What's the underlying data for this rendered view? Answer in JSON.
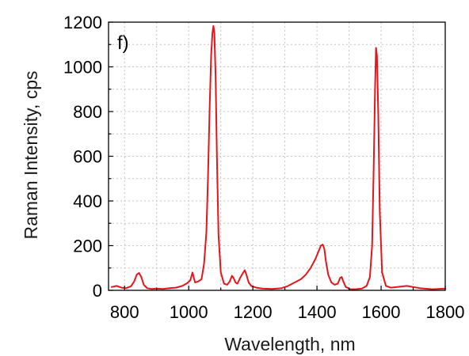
{
  "chart_data": {
    "type": "line",
    "panel_label": "f)",
    "xlabel": "Wavelength, nm",
    "ylabel": "Raman Intensity, cps",
    "xlim": [
      750,
      1800
    ],
    "ylim": [
      0,
      1200
    ],
    "x_ticks": [
      800,
      1000,
      1200,
      1400,
      1600,
      1800
    ],
    "y_ticks": [
      0,
      200,
      400,
      600,
      800,
      1000,
      1200
    ],
    "grid": true,
    "grid_style": "dotted",
    "legend": "none",
    "series": [
      {
        "color": "#e8141b",
        "x": [
          760,
          775,
          790,
          805,
          820,
          830,
          838,
          845,
          852,
          860,
          870,
          885,
          900,
          920,
          940,
          960,
          980,
          995,
          1005,
          1012,
          1016,
          1020,
          1030,
          1040,
          1048,
          1055,
          1060,
          1065,
          1070,
          1074,
          1077,
          1080,
          1084,
          1088,
          1093,
          1100,
          1110,
          1120,
          1128,
          1135,
          1140,
          1146,
          1152,
          1160,
          1168,
          1175,
          1180,
          1187,
          1195,
          1210,
          1230,
          1260,
          1290,
          1310,
          1330,
          1350,
          1365,
          1380,
          1395,
          1405,
          1412,
          1418,
          1423,
          1428,
          1435,
          1445,
          1455,
          1465,
          1472,
          1477,
          1482,
          1490,
          1505,
          1520,
          1540,
          1555,
          1565,
          1572,
          1577,
          1581,
          1584,
          1587,
          1591,
          1596,
          1603,
          1615,
          1630,
          1650,
          1680,
          1720,
          1760,
          1800
        ],
        "y": [
          15,
          20,
          12,
          10,
          18,
          40,
          70,
          78,
          60,
          25,
          10,
          6,
          8,
          6,
          10,
          12,
          20,
          32,
          45,
          80,
          55,
          35,
          40,
          50,
          120,
          260,
          500,
          800,
          1050,
          1150,
          1183,
          1150,
          950,
          600,
          250,
          80,
          30,
          25,
          40,
          65,
          55,
          35,
          30,
          55,
          75,
          90,
          70,
          35,
          20,
          12,
          8,
          6,
          10,
          20,
          35,
          50,
          70,
          100,
          140,
          175,
          200,
          205,
          185,
          130,
          70,
          35,
          25,
          30,
          55,
          60,
          40,
          15,
          5,
          5,
          8,
          20,
          60,
          200,
          550,
          900,
          1085,
          1050,
          800,
          350,
          80,
          20,
          12,
          15,
          20,
          10,
          5,
          8
        ]
      }
    ]
  }
}
